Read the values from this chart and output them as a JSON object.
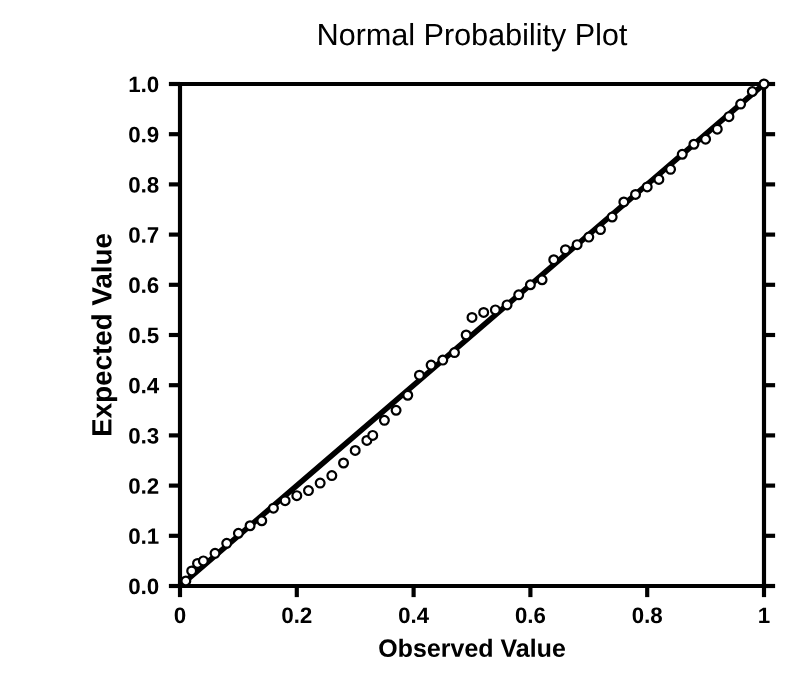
{
  "chart_data": {
    "type": "scatter",
    "title": "Normal Probability Plot",
    "xlabel": "Observed Value",
    "ylabel": "Expected Value",
    "series": [
      {
        "color": "#000000",
        "marker": "circle",
        "x": [
          0.01,
          0.02,
          0.03,
          0.04,
          0.06,
          0.08,
          0.1,
          0.12,
          0.14,
          0.16,
          0.18,
          0.2,
          0.22,
          0.24,
          0.26,
          0.28,
          0.3,
          0.32,
          0.33,
          0.35,
          0.37,
          0.39,
          0.41,
          0.43,
          0.45,
          0.47,
          0.49,
          0.5,
          0.52,
          0.54,
          0.56,
          0.58,
          0.6,
          0.62,
          0.64,
          0.66,
          0.68,
          0.7,
          0.72,
          0.74,
          0.76,
          0.78,
          0.8,
          0.82,
          0.84,
          0.86,
          0.88,
          0.9,
          0.92,
          0.94,
          0.96,
          0.98,
          1.0
        ],
        "values": [
          0.01,
          0.03,
          0.045,
          0.05,
          0.065,
          0.085,
          0.105,
          0.12,
          0.13,
          0.155,
          0.17,
          0.18,
          0.19,
          0.205,
          0.22,
          0.245,
          0.27,
          0.29,
          0.3,
          0.33,
          0.35,
          0.38,
          0.42,
          0.44,
          0.45,
          0.465,
          0.5,
          0.535,
          0.545,
          0.55,
          0.56,
          0.58,
          0.6,
          0.61,
          0.65,
          0.67,
          0.68,
          0.695,
          0.71,
          0.735,
          0.765,
          0.78,
          0.795,
          0.81,
          0.83,
          0.86,
          0.88,
          0.89,
          0.91,
          0.935,
          0.96,
          0.985,
          1.0
        ]
      },
      {
        "type": "line",
        "color": "#000000",
        "marker": "none",
        "line_style": "solid",
        "x": [
          0,
          1
        ],
        "values": [
          0,
          1
        ]
      }
    ],
    "xlim": [
      0,
      1
    ],
    "ylim": [
      0,
      1
    ],
    "xticks": [
      {
        "value": 0,
        "label": "0"
      },
      0.2,
      0.4,
      0.6,
      0.8,
      {
        "value": 1,
        "label": "1"
      }
    ],
    "yticks": [
      {
        "value": 0,
        "label": "0.0"
      },
      0.1,
      0.2,
      0.3,
      0.4,
      0.5,
      0.6,
      0.7,
      0.8,
      0.9,
      {
        "value": 1,
        "label": "1.0"
      }
    ],
    "grid": false,
    "legend": false
  }
}
